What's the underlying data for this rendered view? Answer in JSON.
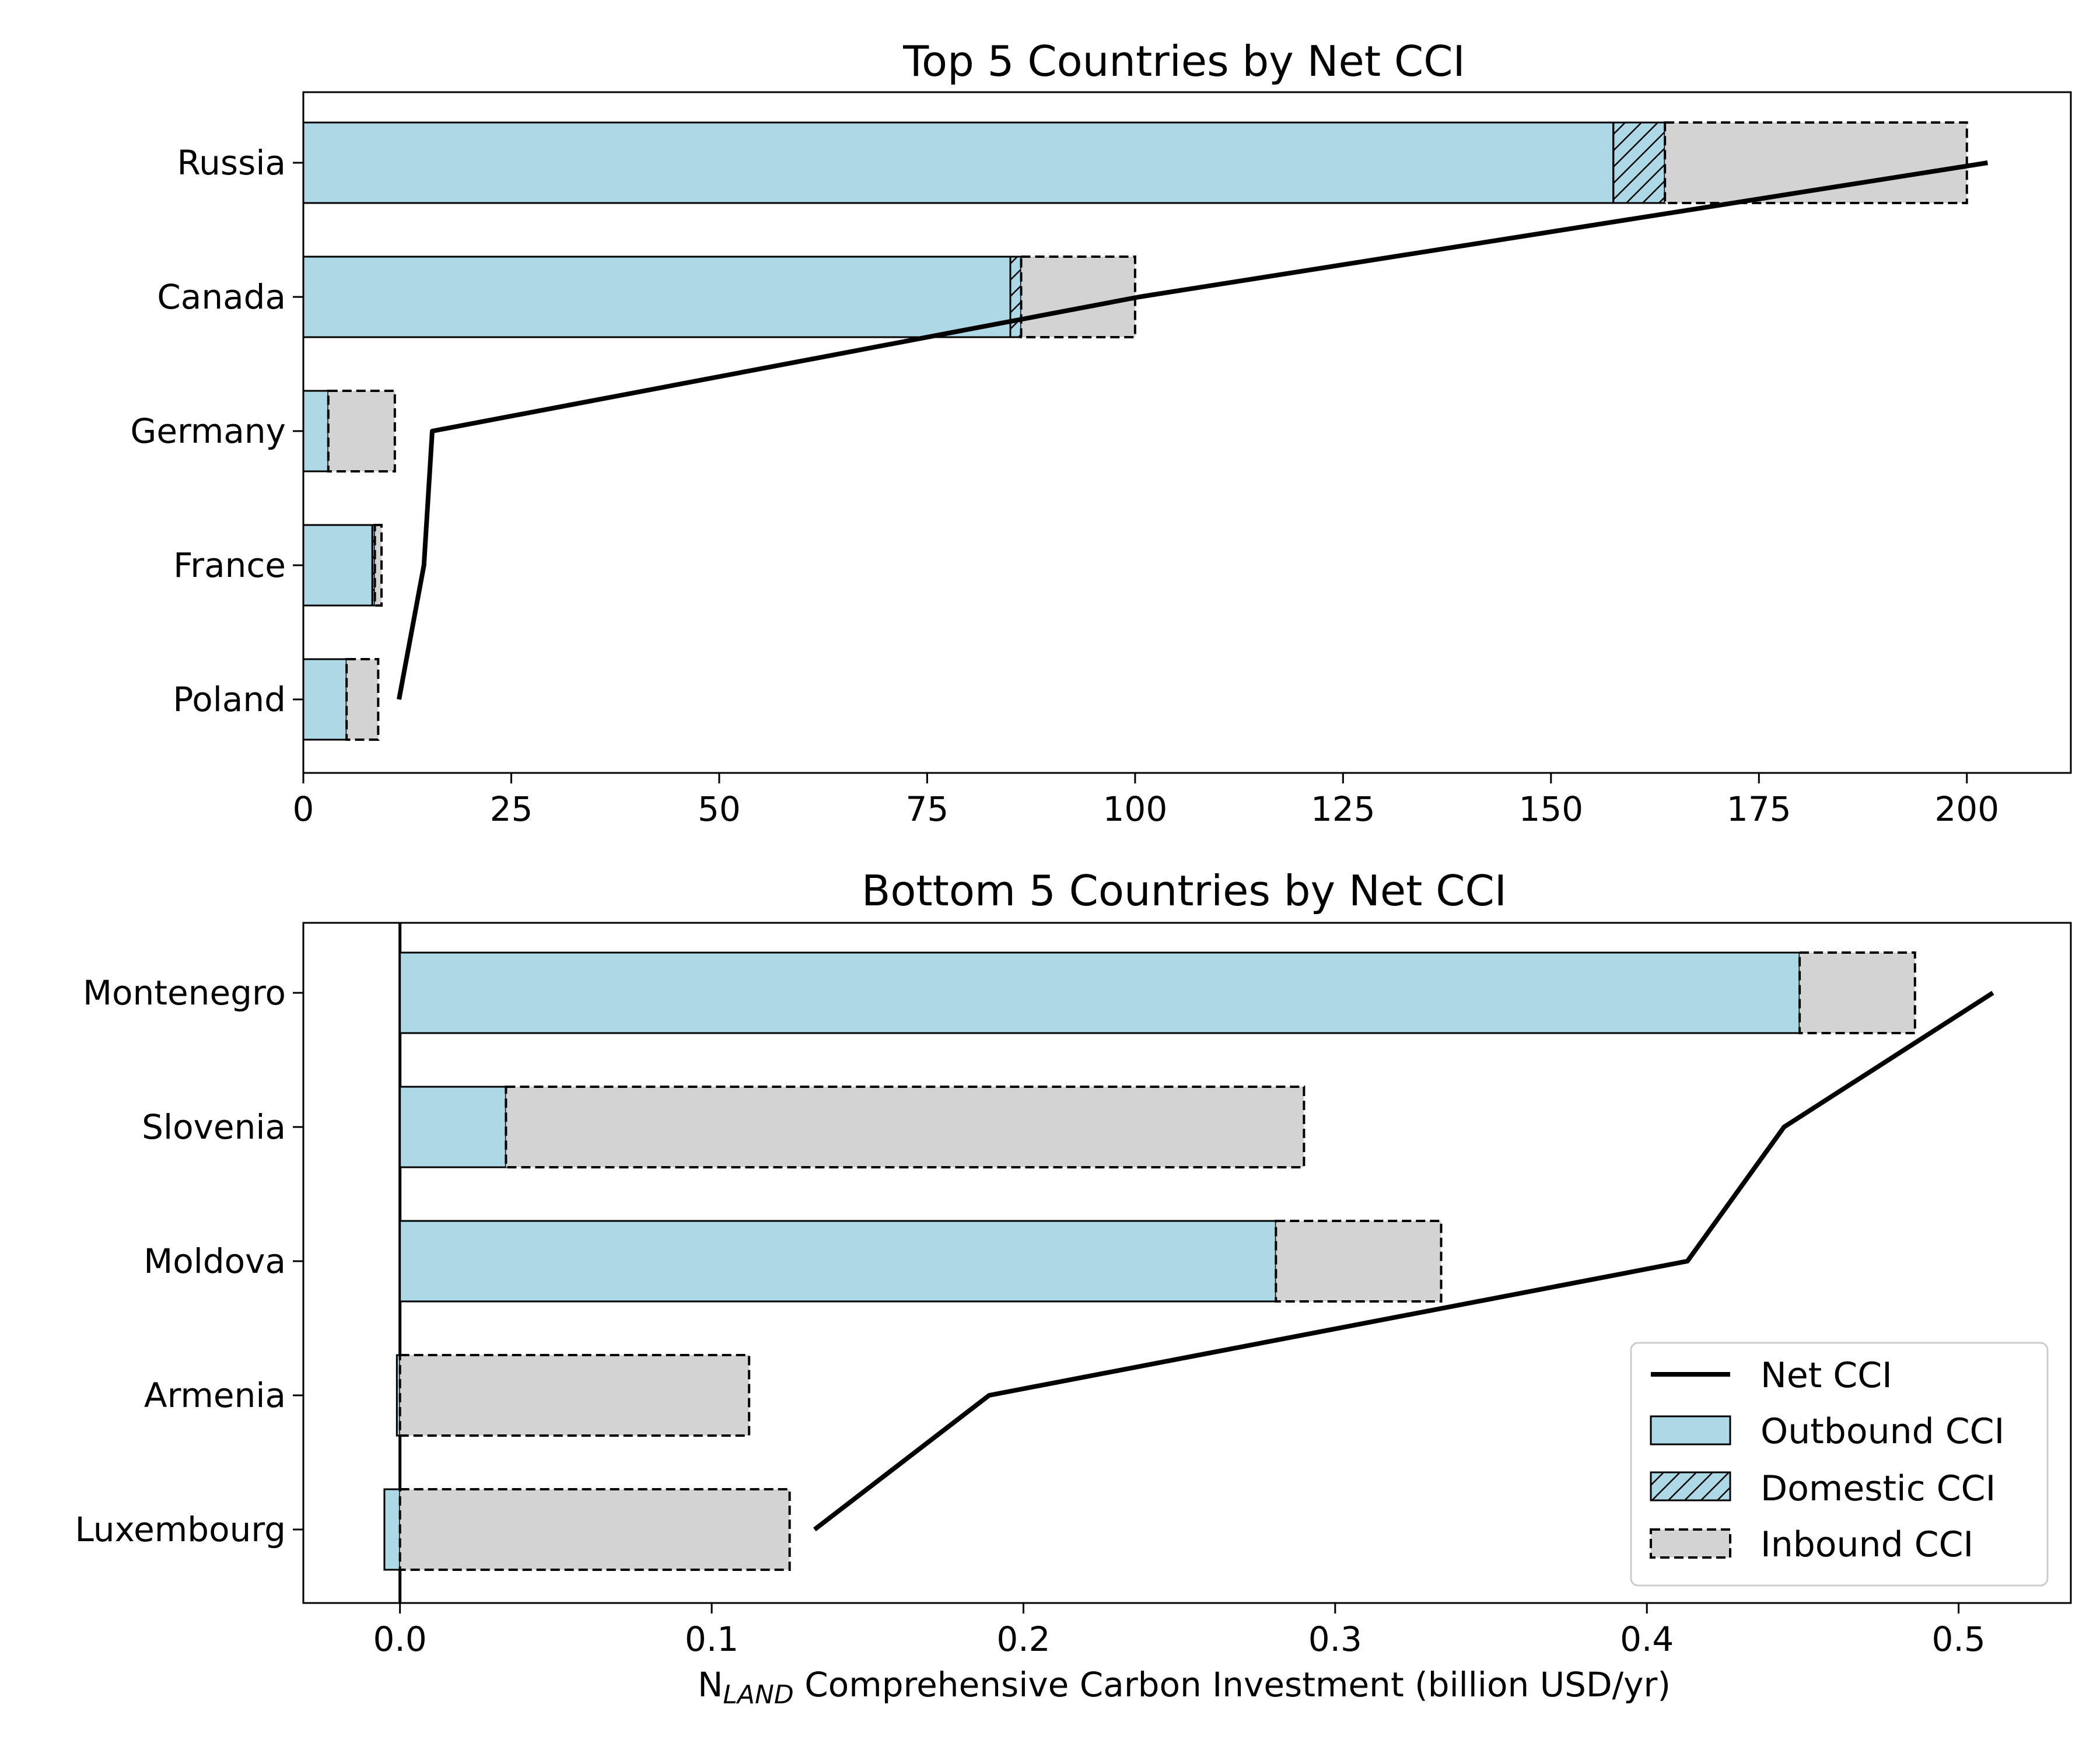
{
  "figure": {
    "xlabel_prefix": "N",
    "xlabel_subscript": "LAND",
    "xlabel_rest": " Comprehensive Carbon Investment (billion USD/yr)"
  },
  "legend": {
    "placement": "lower-right",
    "items": [
      {
        "label": "Net CCI",
        "kind": "line"
      },
      {
        "label": "Outbound CCI",
        "kind": "patch-solid"
      },
      {
        "label": "Domestic CCI",
        "kind": "patch-hatched"
      },
      {
        "label": "Inbound CCI",
        "kind": "patch-dashed"
      }
    ]
  },
  "colors": {
    "outbound": "#add8e6",
    "inbound": "#d3d3d3",
    "net_line": "#000000"
  },
  "chart_data": [
    {
      "type": "bar",
      "orientation": "horizontal",
      "stacked": true,
      "title": "Top 5 Countries by Net CCI",
      "categories": [
        "Russia",
        "Canada",
        "Germany",
        "France",
        "Poland"
      ],
      "series": [
        {
          "name": "Outbound CCI",
          "values": [
            157.5,
            85.0,
            3.0,
            8.3,
            5.2
          ]
        },
        {
          "name": "Domestic CCI",
          "values": [
            6.2,
            1.3,
            0.0,
            0.3,
            0.0
          ]
        },
        {
          "name": "Inbound CCI",
          "values": [
            36.3,
            13.7,
            8.0,
            0.8,
            3.8
          ]
        }
      ],
      "net": [
        202.5,
        100.5,
        15.5,
        14.5,
        11.5
      ],
      "xlim": [
        0,
        212.5
      ],
      "xticks": [
        0,
        25,
        50,
        75,
        100,
        125,
        150,
        175,
        200
      ],
      "xtick_labels": [
        "0",
        "25",
        "50",
        "75",
        "100",
        "125",
        "150",
        "175",
        "200"
      ],
      "grid": false
    },
    {
      "type": "bar",
      "orientation": "horizontal",
      "stacked": true,
      "title": "Bottom 5 Countries by Net CCI",
      "categories": [
        "Montenegro",
        "Slovenia",
        "Moldova",
        "Armenia",
        "Luxembourg"
      ],
      "series": [
        {
          "name": "Outbound CCI",
          "values": [
            0.449,
            0.034,
            0.281,
            -0.001,
            -0.005
          ]
        },
        {
          "name": "Domestic CCI",
          "values": [
            0,
            0,
            0,
            0,
            0
          ]
        },
        {
          "name": "Inbound CCI",
          "values": [
            0.037,
            0.256,
            0.053,
            0.112,
            0.125
          ]
        }
      ],
      "net": [
        0.511,
        0.444,
        0.413,
        0.189,
        0.133
      ],
      "xlim": [
        -0.031,
        0.536
      ],
      "xticks": [
        0.0,
        0.1,
        0.2,
        0.3,
        0.4,
        0.5
      ],
      "xtick_labels": [
        "0.0",
        "0.1",
        "0.2",
        "0.3",
        "0.4",
        "0.5"
      ],
      "zero_line": true,
      "grid": false
    }
  ]
}
